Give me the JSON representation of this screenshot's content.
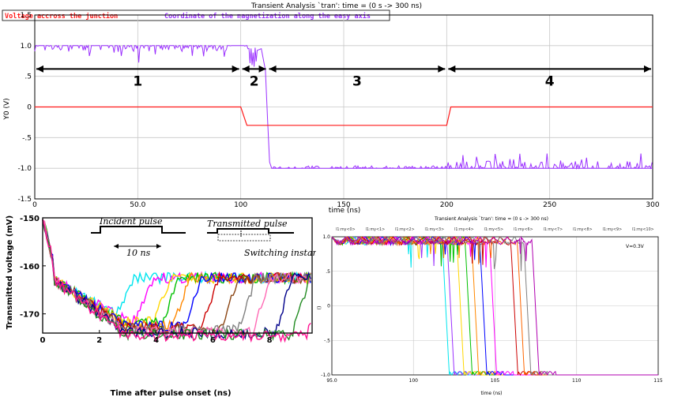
{
  "colors": {
    "voltage": "#ff1a1a",
    "magnetization": "#9b30ff",
    "grid": "#c8c8c8",
    "axis": "#000000"
  },
  "chart_data": [
    {
      "type": "line",
      "title": "Transient Analysis `tran': time = (0 s -> 300 ns)",
      "xlabel": "time (ns)",
      "ylabel": "Y0 (V)",
      "xlim": [
        0,
        300
      ],
      "ylim": [
        -1.5,
        1.5
      ],
      "xticks": [
        "0",
        "50.0",
        "100",
        "150",
        "200",
        "250",
        "300"
      ],
      "yticks": [
        "1.5",
        "1.0",
        ".5",
        "0",
        "-.5",
        "-1.0",
        "-1.5"
      ],
      "grid": true,
      "legend_position": "top-left",
      "regions": [
        "1",
        "2",
        "3",
        "4"
      ],
      "region_bounds": [
        0,
        100,
        113,
        200,
        300
      ],
      "series": [
        {
          "name": "Voltage accross the junction",
          "color": "#ff1a1a",
          "x": [
            0,
            100,
            103,
            200,
            202,
            300
          ],
          "y": [
            0,
            0,
            -0.3,
            -0.3,
            0,
            0
          ]
        },
        {
          "name": "Coordinate of the magnetization along the easy axis",
          "color": "#9b30ff",
          "x": [
            0,
            108,
            110,
            112,
            113,
            114,
            115,
            300
          ],
          "y": [
            1.0,
            1.0,
            0.95,
            0.6,
            -0.2,
            -0.9,
            -1.0,
            -1.0
          ]
        }
      ]
    },
    {
      "type": "line",
      "title": "",
      "xlabel": "Time after pulse onset (ns)",
      "ylabel": "Transmitted voltage (mV)",
      "xlim": [
        0,
        9.5
      ],
      "ylim": [
        -174,
        -150
      ],
      "xticks": [
        "0",
        "2",
        "4",
        "6",
        "8"
      ],
      "yticks": [
        "-150",
        "-160",
        "-170"
      ],
      "grid": false,
      "annotations": [
        "Incident pulse",
        "10 ns",
        "Transmitted pulse",
        "Switching instant"
      ],
      "switch_times": [
        2.6,
        3.3,
        3.9,
        4.2,
        4.6,
        5.0,
        5.6,
        6.3,
        6.9,
        7.4,
        8.2,
        8.8,
        9.3
      ],
      "series_colors": [
        "#00e5ee",
        "#ff00ff",
        "#ffd700",
        "#00c000",
        "#ff8800",
        "#0000ff",
        "#cc0000",
        "#8b4513",
        "#808080",
        "#ff69b4",
        "#00008b",
        "#228b22",
        "#ff1493"
      ]
    },
    {
      "type": "line",
      "title": "Transient Analysis `tran': time = (0 s -> 300 ns)",
      "xlabel": "time (ns)",
      "ylabel": "()",
      "xlim": [
        95,
        115
      ],
      "ylim": [
        -1.0,
        1.0
      ],
      "xticks": [
        "95.0",
        "100",
        "105",
        "110",
        "115"
      ],
      "yticks": [
        "1.0",
        ".5",
        "0",
        "-.5",
        "-1.0"
      ],
      "grid": true,
      "legend": [
        "l1:my<0>",
        "l1:my<1>",
        "l1:my<2>",
        "l1:my<3>",
        "l1:my<4>",
        "l1:my<5>",
        "l1:my<6>",
        "l1:my<7>",
        "l1:my<8>",
        "l1:my<9>",
        "l1:my<10>"
      ],
      "annotation": "V=0.3V",
      "switch_times": [
        102.0,
        102.3,
        102.9,
        103.4,
        103.8,
        104.3,
        104.9,
        106.2,
        106.6,
        107.0,
        107.5
      ],
      "series_colors": [
        "#00e5ee",
        "#9b30ff",
        "#ffd700",
        "#00c000",
        "#ff8800",
        "#0000ff",
        "#ff00ff",
        "#cc0000",
        "#ff6600",
        "#808080",
        "#b000b0"
      ]
    }
  ]
}
